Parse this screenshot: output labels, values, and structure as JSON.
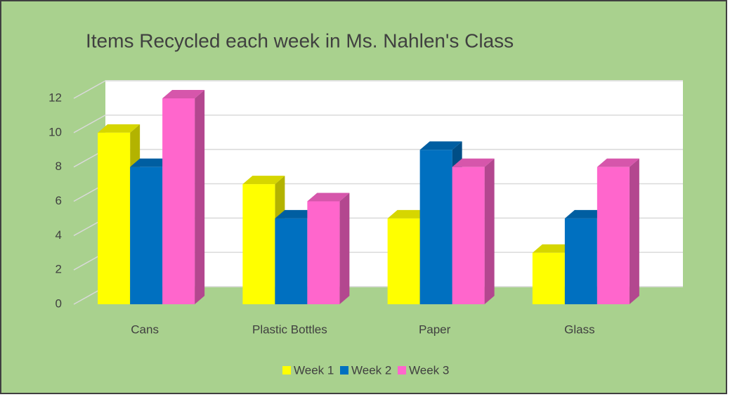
{
  "chart_data": {
    "type": "bar",
    "title": "Items Recycled each week in Ms. Nahlen's Class",
    "categories": [
      "Cans",
      "Plastic Bottles",
      "Paper",
      "Glass"
    ],
    "series": [
      {
        "name": "Week 1",
        "color": "#ffff00",
        "values": [
          10,
          7,
          5,
          3
        ]
      },
      {
        "name": "Week 2",
        "color": "#0070c0",
        "values": [
          8,
          5,
          9,
          5
        ]
      },
      {
        "name": "Week 3",
        "color": "#ff66cc",
        "values": [
          12,
          6,
          8,
          8
        ]
      }
    ],
    "ylim": [
      0,
      12
    ],
    "yticks": [
      0,
      2,
      4,
      6,
      8,
      10,
      12
    ],
    "grid": true,
    "legend": "bottom"
  }
}
